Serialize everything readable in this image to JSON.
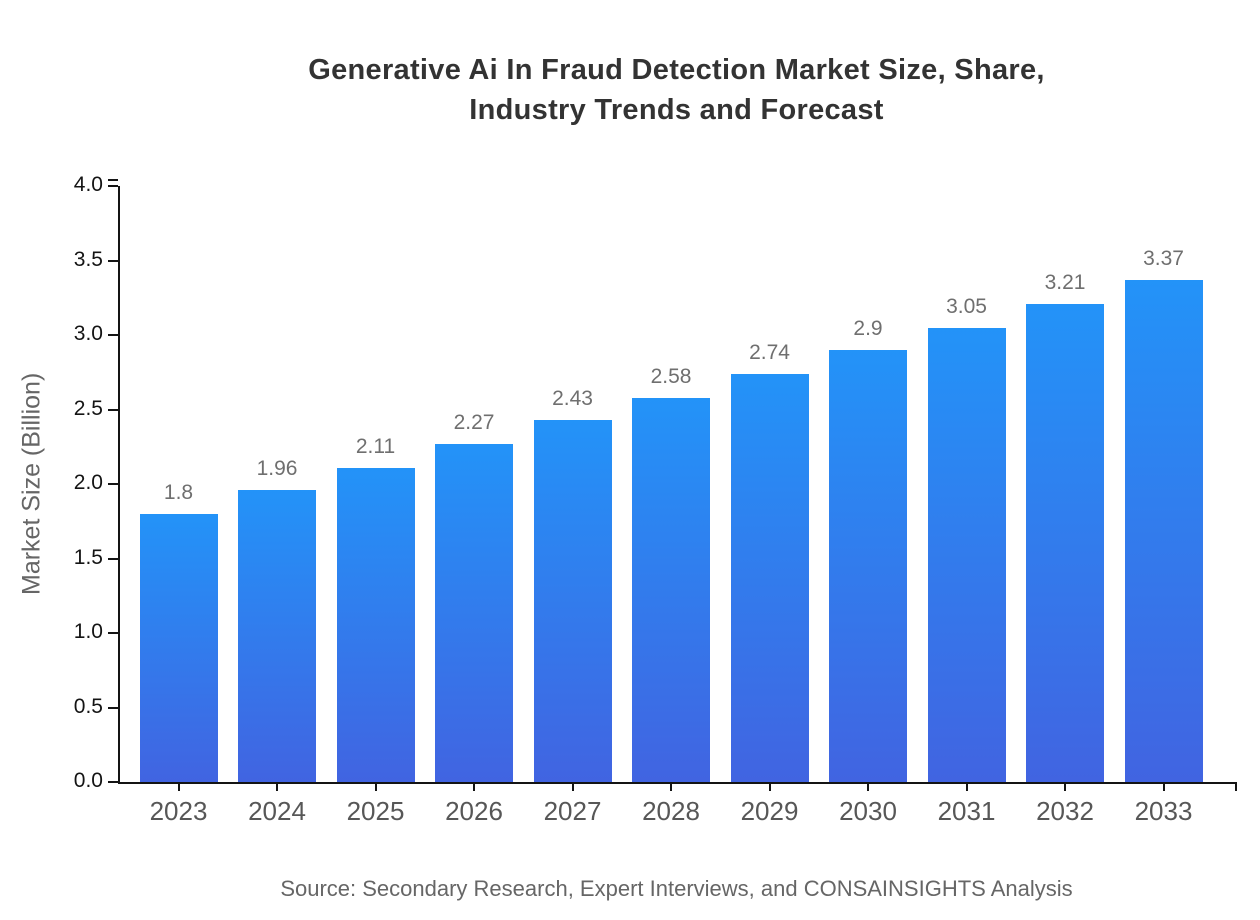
{
  "header": {
    "line1": "Generative Ai In Fraud Detection Market Size, Share,",
    "line2": "Industry Trends and Forecast"
  },
  "footer": {
    "source": "Source: Secondary Research, Expert Interviews, and CONSAINSIGHTS Analysis"
  },
  "chart_data": {
    "type": "bar",
    "title": "Generative Ai In Fraud Detection Market Size, Share, Industry Trends and Forecast",
    "xlabel": "",
    "ylabel": "Market Size (Billion)",
    "categories": [
      "2023",
      "2024",
      "2025",
      "2026",
      "2027",
      "2028",
      "2029",
      "2030",
      "2031",
      "2032",
      "2033"
    ],
    "values": [
      1.8,
      1.96,
      2.11,
      2.27,
      2.43,
      2.58,
      2.74,
      2.9,
      3.05,
      3.21,
      3.37
    ],
    "value_labels": [
      "1.8",
      "1.96",
      "2.11",
      "2.27",
      "2.43",
      "2.58",
      "2.74",
      "2.9",
      "3.05",
      "3.21",
      "3.37"
    ],
    "ylim": [
      0.0,
      4.0
    ],
    "yticks": [
      0.0,
      0.5,
      1.0,
      1.5,
      2.0,
      2.5,
      3.0,
      3.5,
      4.0
    ],
    "grid": false,
    "legend_position": "none",
    "bar_color_top": "#2393f8",
    "bar_color_bottom": "#4164e1"
  },
  "colors": {
    "background": "#ffffff",
    "title": "#333333",
    "axis": "#141414",
    "tick_label": "#141414",
    "year_label": "#575757",
    "value_label": "#6f6f6f",
    "axis_title": "#666666",
    "source": "#666666"
  }
}
